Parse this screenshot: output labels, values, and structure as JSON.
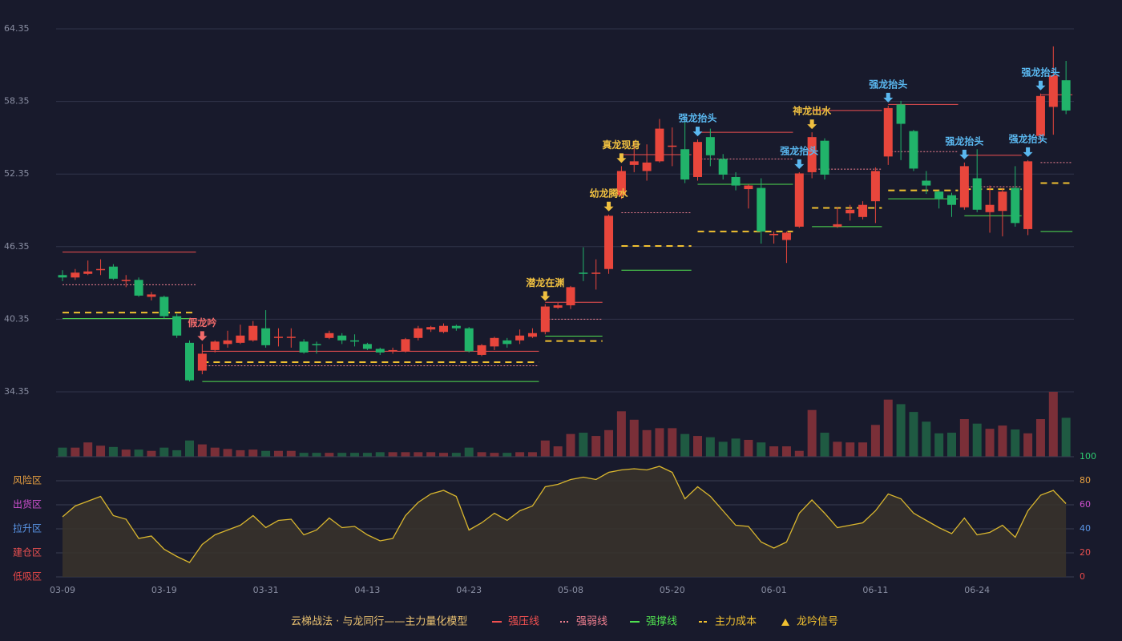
{
  "chart_data": [
    {
      "type": "candlestick",
      "categories": [
        "03-09",
        null,
        null,
        null,
        null,
        null,
        null,
        null,
        "03-19",
        null,
        null,
        null,
        null,
        null,
        null,
        null,
        "03-31",
        null,
        null,
        null,
        null,
        null,
        null,
        null,
        "04-13",
        null,
        null,
        null,
        null,
        null,
        null,
        null,
        "04-23",
        null,
        null,
        null,
        null,
        null,
        null,
        null,
        "05-08",
        null,
        null,
        null,
        null,
        null,
        null,
        null,
        "05-20",
        null,
        null,
        null,
        null,
        null,
        null,
        null,
        "06-01",
        null,
        null,
        null,
        null,
        null,
        null,
        null,
        "06-11",
        null,
        null,
        null,
        null,
        null,
        null,
        null,
        "06-24",
        null,
        null,
        null,
        null,
        null,
        null,
        null
      ],
      "open": [
        44.0,
        43.8,
        44.1,
        44.4,
        44.7,
        43.5,
        43.6,
        42.2,
        42.2,
        40.6,
        38.4,
        36.1,
        37.8,
        38.3,
        38.4,
        38.6,
        39.6,
        38.8,
        38.8,
        38.5,
        38.3,
        38.8,
        39.0,
        38.6,
        38.3,
        37.9,
        37.7,
        37.7,
        38.8,
        39.5,
        39.3,
        39.8,
        39.6,
        37.4,
        38.1,
        38.6,
        38.6,
        38.9,
        39.3,
        41.3,
        41.5,
        44.2,
        44.1,
        44.5,
        50.6,
        53.1,
        52.6,
        53.4,
        54.6,
        54.4,
        52.1,
        55.4,
        53.6,
        52.1,
        51.1,
        51.2,
        47.3,
        46.9,
        48.0,
        52.5,
        55.1,
        48.0,
        49.1,
        48.8,
        50.1,
        53.8,
        58.1,
        55.9,
        51.8,
        50.9,
        50.6,
        49.6,
        52.0,
        49.2,
        49.3,
        51.2,
        47.8,
        55.5,
        57.9,
        60.1
      ],
      "close": [
        43.8,
        44.2,
        44.3,
        44.5,
        43.7,
        43.6,
        42.3,
        42.4,
        40.6,
        39.0,
        35.3,
        37.5,
        38.5,
        38.6,
        39.0,
        39.8,
        38.2,
        38.9,
        38.9,
        37.6,
        38.2,
        39.2,
        38.6,
        38.5,
        37.9,
        37.6,
        37.8,
        38.7,
        39.6,
        39.7,
        39.8,
        39.6,
        37.7,
        38.2,
        38.8,
        38.3,
        39.0,
        39.2,
        41.4,
        41.5,
        43.0,
        44.1,
        44.2,
        48.9,
        52.6,
        53.4,
        53.3,
        56.1,
        54.7,
        51.9,
        55.0,
        53.9,
        52.3,
        51.4,
        51.4,
        47.6,
        47.4,
        47.5,
        52.4,
        55.4,
        52.3,
        48.2,
        49.4,
        49.8,
        52.6,
        57.8,
        56.5,
        52.8,
        51.4,
        50.3,
        49.8,
        53.0,
        49.4,
        49.8,
        50.9,
        48.3,
        53.4,
        58.8,
        60.5,
        57.6
      ],
      "low": [
        43.5,
        43.6,
        44.0,
        44.0,
        43.6,
        43.0,
        42.2,
        41.9,
        40.4,
        38.8,
        35.2,
        35.8,
        37.6,
        38.0,
        38.3,
        38.5,
        38.0,
        38.1,
        38.0,
        37.5,
        37.5,
        38.7,
        38.3,
        38.1,
        37.8,
        37.4,
        37.5,
        37.6,
        38.6,
        39.3,
        39.2,
        39.4,
        37.6,
        37.3,
        37.8,
        38.0,
        38.3,
        38.8,
        39.1,
        41.2,
        41.2,
        43.5,
        42.8,
        44.1,
        50.3,
        52.5,
        51.8,
        53.3,
        53.0,
        51.6,
        51.8,
        53.0,
        51.9,
        51.0,
        49.5,
        46.6,
        46.6,
        45.0,
        47.9,
        52.0,
        51.9,
        47.9,
        48.5,
        48.6,
        48.3,
        53.1,
        53.5,
        52.6,
        50.7,
        49.5,
        48.8,
        49.4,
        49.2,
        47.5,
        47.2,
        48.0,
        47.3,
        54.9,
        55.6,
        57.3
      ],
      "high": [
        44.4,
        44.5,
        45.2,
        45.3,
        44.9,
        44.0,
        43.8,
        42.6,
        42.3,
        40.8,
        38.6,
        38.3,
        38.6,
        39.4,
        39.9,
        40.2,
        41.1,
        39.6,
        39.6,
        38.7,
        38.5,
        39.4,
        39.2,
        39.1,
        38.4,
        38.0,
        38.0,
        38.8,
        39.8,
        39.8,
        40.0,
        39.9,
        39.7,
        38.3,
        38.9,
        38.8,
        39.5,
        39.6,
        41.6,
        41.7,
        43.1,
        46.3,
        45.3,
        49.0,
        53.0,
        55.0,
        54.8,
        56.9,
        56.2,
        56.8,
        55.2,
        56.1,
        54.0,
        52.5,
        51.5,
        52.0,
        47.6,
        47.6,
        52.5,
        55.8,
        55.3,
        49.6,
        49.8,
        50.1,
        52.9,
        58.0,
        58.4,
        56.0,
        52.6,
        51.0,
        50.8,
        53.3,
        54.4,
        51.4,
        51.2,
        53.0,
        53.5,
        59.0,
        62.9,
        61.7
      ],
      "up_color": "#e8463c",
      "down_color": "#21b36a",
      "ylim": [
        34.35,
        64.35
      ],
      "yticks": [
        34.35,
        40.35,
        46.35,
        52.35,
        58.35,
        64.35
      ],
      "grid": true,
      "levels": [
        {
          "start": 0,
          "end": 10,
          "values": [
            45.9,
            43.2,
            40.4,
            40.9
          ]
        },
        {
          "start": 11,
          "end": 37,
          "values": [
            37.7,
            36.5,
            35.2,
            36.8
          ]
        },
        {
          "start": 38,
          "end": 42,
          "values": [
            41.75,
            40.35,
            38.95,
            38.55
          ]
        },
        {
          "start": 44,
          "end": 49,
          "values": [
            53.95,
            49.15,
            44.4,
            46.4
          ]
        },
        {
          "start": 50,
          "end": 57,
          "values": [
            55.8,
            53.6,
            51.5,
            47.6
          ]
        },
        {
          "start": 59,
          "end": 64,
          "values": [
            57.6,
            52.75,
            48.0,
            49.55
          ]
        },
        {
          "start": 65,
          "end": 70,
          "values": [
            58.1,
            54.2,
            50.3,
            51.0
          ]
        },
        {
          "start": 71,
          "end": 75,
          "values": [
            53.9,
            51.3,
            48.9,
            51.1
          ]
        },
        {
          "start": 77,
          "end": 79,
          "values": [
            58.9,
            53.3,
            47.6,
            51.6
          ]
        }
      ],
      "signals": [
        {
          "index": 11,
          "label": "假龙吟",
          "color": "#f06a6a"
        },
        {
          "index": 38,
          "label": "潜龙在渊",
          "color": "#f0c040"
        },
        {
          "index": 43,
          "label": "幼龙腾水",
          "color": "#f0c040"
        },
        {
          "index": 44,
          "label": "真龙现身",
          "color": "#f0c040"
        },
        {
          "index": 50,
          "label": "强龙抬头",
          "color": "#5ab8f0"
        },
        {
          "index": 58,
          "label": "强龙抬头",
          "color": "#5ab8f0"
        },
        {
          "index": 59,
          "label": "神龙出水",
          "color": "#f0c040"
        },
        {
          "index": 65,
          "label": "强龙抬头",
          "color": "#5ab8f0"
        },
        {
          "index": 71,
          "label": "强龙抬头",
          "color": "#5ab8f0"
        },
        {
          "index": 76,
          "label": "强龙抬头",
          "color": "#5ab8f0"
        },
        {
          "index": 77,
          "label": "强龙抬头",
          "color": "#5ab8f0"
        }
      ]
    },
    {
      "type": "bar",
      "values": [
        14,
        14,
        22,
        17,
        15,
        11,
        11,
        9,
        14,
        10,
        25,
        19,
        14,
        12,
        10,
        11,
        9,
        9,
        9,
        6,
        6,
        6,
        6,
        6,
        6,
        7,
        7,
        7,
        7,
        7,
        6,
        6,
        14,
        7,
        6,
        6,
        7,
        7,
        25,
        16,
        35,
        37,
        32,
        41,
        70,
        57,
        41,
        44,
        44,
        35,
        32,
        30,
        23,
        28,
        26,
        22,
        16,
        16,
        9,
        72,
        37,
        23,
        22,
        22,
        49,
        88,
        81,
        69,
        54,
        36,
        37,
        58,
        51,
        43,
        48,
        42,
        36,
        58,
        100,
        60
      ],
      "up_color": "#7a2f38",
      "down_color": "#1f5a42",
      "ylim": [
        0,
        100
      ]
    },
    {
      "type": "area",
      "values": [
        50,
        59,
        63,
        67,
        51,
        48,
        32,
        34,
        23,
        17,
        12,
        27,
        35,
        39,
        43,
        51,
        41,
        47,
        48,
        35,
        39,
        49,
        41,
        42,
        35,
        30,
        32,
        51,
        62,
        69,
        72,
        67,
        39,
        45,
        53,
        47,
        55,
        59,
        75,
        77,
        81,
        83,
        81,
        87,
        89,
        90,
        89,
        92,
        87,
        65,
        75,
        67,
        55,
        43,
        42,
        29,
        24,
        29,
        53,
        64,
        53,
        41,
        43,
        45,
        55,
        69,
        65,
        53,
        47,
        41,
        36,
        49,
        35,
        37,
        43,
        33,
        55,
        68,
        72,
        61
      ],
      "color": "#d9b62e",
      "fill": "#3a342c",
      "ylim": [
        0,
        100
      ],
      "yticks": [
        0,
        20,
        40,
        60,
        80,
        100
      ],
      "ytick_colors": [
        "#e84848",
        "#e85050",
        "#5a96e8",
        "#d050d0",
        "#e8a040",
        "#2ecc71"
      ],
      "zones": [
        {
          "value": 80,
          "label": "风险区",
          "color": "#e8a040"
        },
        {
          "value": 60,
          "label": "出货区",
          "color": "#d050d0"
        },
        {
          "value": 40,
          "label": "拉升区",
          "color": "#5a96e8"
        },
        {
          "value": 20,
          "label": "建仓区",
          "color": "#e85050"
        },
        {
          "value": 0,
          "label": "低吸区",
          "color": "#e84848"
        }
      ]
    }
  ],
  "legend": {
    "title": "云梯战法 · 与龙同行——主力量化模型",
    "title_color": "#e8c070",
    "items": [
      {
        "name": "强压线",
        "color": "#f05050",
        "style": "solid"
      },
      {
        "name": "强弱线",
        "color": "#f08090",
        "style": "dotted"
      },
      {
        "name": "强撑线",
        "color": "#50e050",
        "style": "solid"
      },
      {
        "name": "主力成本",
        "color": "#f0c030",
        "style": "dashed"
      },
      {
        "name": "龙吟信号",
        "color": "#f0c030",
        "style": "triangle"
      }
    ]
  }
}
